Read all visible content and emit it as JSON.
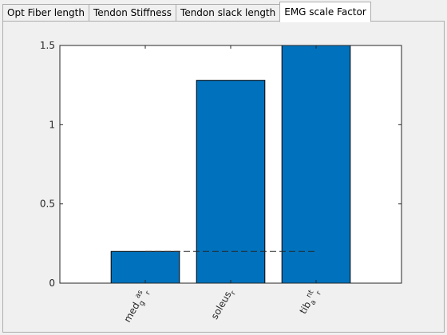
{
  "tabs": [
    {
      "label": "Opt Fiber length",
      "active": false
    },
    {
      "label": "Tendon Stiffness",
      "active": false
    },
    {
      "label": "Tendon slack length",
      "active": false
    },
    {
      "label": "EMG scale Factor",
      "active": true
    }
  ],
  "chart_data": {
    "type": "bar",
    "categories": [
      "med_gas_r",
      "soleus_r",
      "tib_ant_r"
    ],
    "category_labels": [
      {
        "parts": [
          {
            "t": "med",
            "s": "n"
          },
          {
            "t": "g",
            "s": "sub"
          },
          {
            "t": "as",
            "s": "sup"
          },
          {
            "t": "r",
            "s": "sub"
          }
        ]
      },
      {
        "parts": [
          {
            "t": "soleus",
            "s": "n"
          },
          {
            "t": "r",
            "s": "sub"
          }
        ]
      },
      {
        "parts": [
          {
            "t": "tib",
            "s": "n"
          },
          {
            "t": "a",
            "s": "sub"
          },
          {
            "t": "nt",
            "s": "sup"
          },
          {
            "t": "r",
            "s": "sub"
          }
        ]
      }
    ],
    "values": [
      0.2,
      1.28,
      1.5
    ],
    "ylim": [
      0,
      1.5
    ],
    "yticks": [
      0,
      0.5,
      1,
      1.5
    ],
    "ytick_labels": [
      "0",
      "0.5",
      "1",
      "1.5"
    ],
    "xlim": [
      0,
      4
    ],
    "bar_color": "#0072bd",
    "reference_lines": [
      {
        "y": 1.5,
        "x_from": 1,
        "x_to": 3
      },
      {
        "y": 0.2,
        "x_from": 1,
        "x_to": 3
      }
    ],
    "grid": false,
    "title": "",
    "xlabel": "",
    "ylabel": ""
  }
}
